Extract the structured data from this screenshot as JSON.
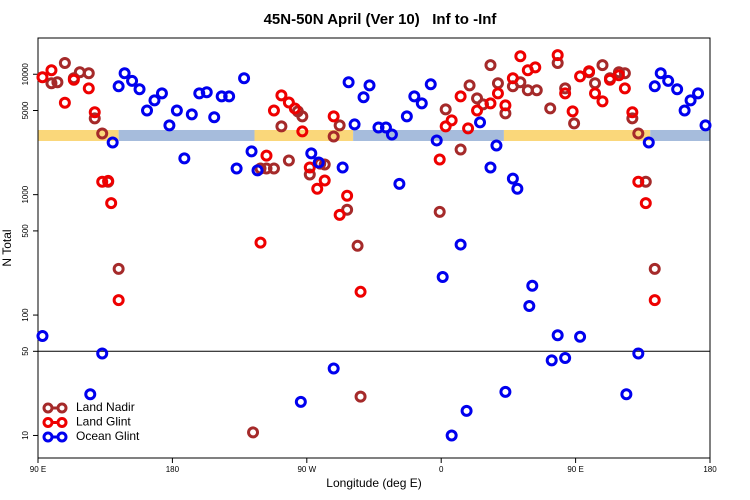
{
  "chart_data": {
    "type": "scatter",
    "title": "45N-50N April (Ver 10)   Inf to -Inf",
    "x_label": "Longitude (deg E)",
    "y_label": "N Total",
    "xlim": [
      90,
      540
    ],
    "xticks": [
      {
        "value": 90,
        "label": "90 E"
      },
      180,
      {
        "value": 270,
        "label": "90 W"
      },
      {
        "value": 360,
        "label": "0"
      },
      {
        "value": 450,
        "label": "90 E"
      },
      {
        "value": 540,
        "label": "180"
      }
    ],
    "ylim": [
      6.5,
      20000
    ],
    "ylog": true,
    "yticks": [
      10,
      50,
      100,
      500,
      1000,
      5000,
      10000
    ],
    "hline": 50,
    "legend": "lower left",
    "surface_band": {
      "y": 3100,
      "segments": [
        {
          "x": [
            90,
            144
          ],
          "color": "#fad77a"
        },
        {
          "x": [
            144,
            235
          ],
          "color": "#a6bcdc"
        },
        {
          "x": [
            235,
            301
          ],
          "color": "#fad77a"
        },
        {
          "x": [
            301,
            402
          ],
          "color": "#a6bcdc"
        },
        {
          "x": [
            402,
            500
          ],
          "color": "#fad77a"
        },
        {
          "x": [
            500,
            540
          ],
          "color": "#a6bcdc"
        }
      ]
    },
    "series": [
      {
        "name": "Land Nadir",
        "color": "#a52a2a",
        "x": [
          99,
          103,
          108,
          114,
          118,
          124,
          128,
          133,
          137,
          144,
          234,
          239,
          243,
          248,
          253,
          258,
          264,
          267,
          272,
          279,
          282,
          288,
          292,
          297,
          304,
          306,
          359,
          363,
          373,
          379,
          384,
          388,
          393,
          398,
          403,
          408,
          413,
          418,
          424,
          433,
          438,
          443,
          449,
          459,
          463,
          468,
          473,
          479,
          483,
          488,
          492,
          497,
          503
        ],
        "y": [
          8410,
          8580,
          12400,
          9260,
          10400,
          10200,
          4300,
          3220,
          1280,
          242,
          10.6,
          1650,
          1650,
          1650,
          3690,
          1920,
          4920,
          4470,
          1470,
          1810,
          1780,
          3040,
          3760,
          750,
          376,
          21,
          720,
          5110,
          2370,
          8090,
          6310,
          5620,
          11900,
          8410,
          4730,
          7940,
          8580,
          7360,
          7360,
          5210,
          12400,
          7640,
          3910,
          10400,
          8410,
          11900,
          9260,
          10400,
          10200,
          4300,
          3220,
          1280,
          242
        ]
      },
      {
        "name": "Land Glint",
        "color": "#ee0000",
        "x": [
          93,
          99,
          108,
          114,
          124,
          128,
          133,
          137,
          139,
          144,
          239,
          243,
          248,
          253,
          258,
          262,
          267,
          272,
          277,
          282,
          288,
          292,
          297,
          306,
          359,
          363,
          367,
          373,
          378,
          384,
          393,
          398,
          403,
          408,
          413,
          418,
          423,
          438,
          443,
          448,
          453,
          459,
          463,
          468,
          473,
          479,
          483,
          488,
          492,
          497,
          503
        ],
        "y": [
          9440,
          10800,
          5800,
          9000,
          7640,
          4830,
          1280,
          1300,
          850,
          133,
          400,
          2110,
          5000,
          6680,
          5830,
          5200,
          3350,
          1680,
          1120,
          1310,
          4470,
          680,
          980,
          156,
          1960,
          3690,
          4140,
          6550,
          3550,
          5000,
          5730,
          6940,
          5520,
          9260,
          14100,
          10800,
          11400,
          14400,
          6940,
          4920,
          9600,
          10600,
          6940,
          5950,
          9000,
          9800,
          7640,
          4830,
          1280,
          850,
          133
        ]
      },
      {
        "name": "Ocean Glint",
        "color": "#0000ee",
        "x": [
          93,
          125,
          133,
          140,
          144,
          148,
          153,
          158,
          163,
          168,
          173,
          178,
          183,
          188,
          193,
          198,
          203,
          208,
          213,
          218,
          223,
          228,
          233,
          237,
          266,
          273,
          278,
          288,
          294,
          298,
          302,
          308,
          312,
          318,
          323,
          327,
          332,
          337,
          342,
          347,
          353,
          357,
          361,
          367,
          373,
          377,
          386,
          393,
          397,
          403,
          408,
          411,
          419,
          421,
          434,
          438,
          443,
          453,
          484,
          492,
          499,
          503,
          507,
          512,
          518,
          523,
          527,
          532,
          537
        ],
        "y": [
          67,
          22,
          48,
          2710,
          7940,
          10200,
          8800,
          7500,
          5000,
          6070,
          6940,
          3760,
          5000,
          2000,
          4640,
          6940,
          7080,
          4390,
          6550,
          6550,
          1650,
          9260,
          2290,
          1590,
          19,
          2200,
          1850,
          36,
          1680,
          8580,
          3830,
          6440,
          8090,
          3610,
          3610,
          3160,
          1230,
          4470,
          6550,
          5730,
          8250,
          2820,
          207,
          10,
          385,
          16,
          3980,
          1680,
          2560,
          23,
          1360,
          1120,
          119,
          175,
          42,
          68,
          44,
          66,
          22,
          48,
          2710,
          7940,
          10200,
          8800,
          7500,
          5000,
          6070,
          6940,
          3760
        ]
      }
    ]
  }
}
